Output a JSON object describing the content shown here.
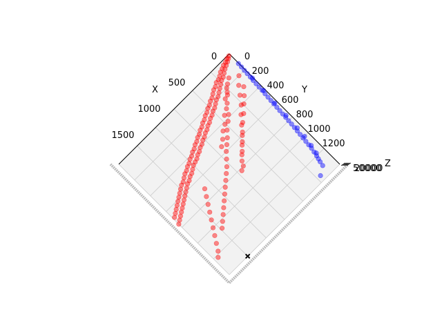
{
  "chart_data": {
    "type": "scatter",
    "projection": "3d",
    "xlabel": "X",
    "ylabel": "Y",
    "zlabel": "Z",
    "x_ticks": [
      "0",
      "500",
      "1000",
      "1500"
    ],
    "y_ticks": [
      "0",
      "200",
      "400",
      "600",
      "800",
      "1000",
      "1200"
    ],
    "z_ticks_overlapping": "5000 / 10000 / 15000 / 20000 / 25000 (overlapping)",
    "z_tick_text": "50000",
    "grid": true,
    "colors": {
      "series_red": "#ff0000",
      "series_blue": "#0000ff",
      "marker": "#000000",
      "pane": "#f2f2f2",
      "grid": "#cccccc"
    },
    "series": [
      {
        "color": "red",
        "alpha": 0.45,
        "points": [
          [
            20,
            10
          ],
          [
            45,
            25
          ],
          [
            60,
            15
          ],
          [
            80,
            40
          ],
          [
            100,
            30
          ],
          [
            120,
            55
          ],
          [
            140,
            35
          ],
          [
            160,
            70
          ],
          [
            180,
            50
          ],
          [
            200,
            90
          ],
          [
            220,
            60
          ],
          [
            240,
            110
          ],
          [
            260,
            80
          ],
          [
            280,
            120
          ],
          [
            300,
            95
          ],
          [
            320,
            140
          ],
          [
            340,
            100
          ],
          [
            360,
            160
          ],
          [
            380,
            120
          ],
          [
            400,
            180
          ],
          [
            420,
            130
          ],
          [
            440,
            200
          ],
          [
            460,
            150
          ],
          [
            480,
            210
          ],
          [
            500,
            170
          ],
          [
            520,
            230
          ],
          [
            540,
            180
          ],
          [
            560,
            250
          ],
          [
            580,
            200
          ],
          [
            600,
            260
          ],
          [
            620,
            210
          ],
          [
            640,
            280
          ],
          [
            660,
            230
          ],
          [
            680,
            290
          ],
          [
            700,
            240
          ],
          [
            720,
            310
          ],
          [
            740,
            260
          ],
          [
            760,
            320
          ],
          [
            780,
            270
          ],
          [
            800,
            340
          ],
          [
            820,
            290
          ],
          [
            840,
            350
          ],
          [
            860,
            300
          ],
          [
            880,
            370
          ],
          [
            900,
            320
          ],
          [
            920,
            380
          ],
          [
            940,
            330
          ],
          [
            960,
            400
          ],
          [
            980,
            350
          ],
          [
            1000,
            410
          ],
          [
            1020,
            360
          ],
          [
            1040,
            430
          ],
          [
            1060,
            380
          ],
          [
            1080,
            440
          ],
          [
            1100,
            390
          ],
          [
            1120,
            460
          ],
          [
            1140,
            410
          ],
          [
            1160,
            470
          ],
          [
            1180,
            420
          ],
          [
            1200,
            480
          ],
          [
            1220,
            440
          ],
          [
            1240,
            500
          ],
          [
            1260,
            450
          ],
          [
            1280,
            520
          ],
          [
            1300,
            470
          ],
          [
            1320,
            530
          ],
          [
            1340,
            480
          ],
          [
            1360,
            550
          ],
          [
            1380,
            500
          ],
          [
            1400,
            560
          ],
          [
            1420,
            520
          ],
          [
            1440,
            580
          ],
          [
            1460,
            530
          ],
          [
            1480,
            600
          ],
          [
            1500,
            550
          ],
          [
            1520,
            620
          ],
          [
            1540,
            570
          ],
          [
            1560,
            640
          ],
          [
            1580,
            590
          ],
          [
            1600,
            660
          ],
          [
            1620,
            610
          ],
          [
            1640,
            680
          ],
          [
            1660,
            630
          ],
          [
            1680,
            700
          ],
          [
            1700,
            650
          ],
          [
            1720,
            720
          ],
          [
            1740,
            670
          ],
          [
            1760,
            740
          ],
          [
            1780,
            690
          ],
          [
            1800,
            760
          ],
          [
            300,
            200
          ],
          [
            350,
            250
          ],
          [
            420,
            300
          ],
          [
            500,
            380
          ],
          [
            560,
            420
          ],
          [
            640,
            470
          ],
          [
            700,
            520
          ],
          [
            760,
            560
          ],
          [
            820,
            600
          ],
          [
            880,
            650
          ],
          [
            940,
            700
          ],
          [
            1000,
            740
          ],
          [
            1060,
            780
          ],
          [
            1120,
            820
          ],
          [
            1180,
            860
          ],
          [
            1240,
            900
          ],
          [
            1300,
            940
          ],
          [
            1360,
            980
          ],
          [
            1420,
            1020
          ],
          [
            1480,
            1060
          ],
          [
            200,
            150
          ],
          [
            260,
            180
          ],
          [
            330,
            230
          ],
          [
            400,
            260
          ],
          [
            470,
            330
          ],
          [
            540,
            360
          ],
          [
            610,
            420
          ],
          [
            680,
            450
          ],
          [
            750,
            500
          ],
          [
            820,
            540
          ],
          [
            150,
            300
          ],
          [
            220,
            360
          ],
          [
            290,
            410
          ],
          [
            370,
            470
          ],
          [
            450,
            520
          ],
          [
            530,
            580
          ],
          [
            610,
            640
          ],
          [
            690,
            700
          ],
          [
            770,
            760
          ],
          [
            850,
            820
          ],
          [
            100,
            200
          ],
          [
            180,
            260
          ],
          [
            250,
            330
          ],
          [
            320,
            400
          ],
          [
            400,
            460
          ],
          [
            480,
            530
          ],
          [
            560,
            600
          ],
          [
            640,
            660
          ],
          [
            720,
            720
          ],
          [
            800,
            800
          ],
          [
            1300,
            700
          ],
          [
            1350,
            760
          ],
          [
            1400,
            820
          ],
          [
            1450,
            880
          ],
          [
            1500,
            940
          ],
          [
            1550,
            1000
          ],
          [
            1600,
            1060
          ],
          [
            1650,
            1120
          ],
          [
            1700,
            1180
          ],
          [
            1750,
            1220
          ]
        ]
      },
      {
        "color": "blue",
        "alpha": 0.45,
        "points": [
          [
            5,
            120
          ],
          [
            8,
            160
          ],
          [
            12,
            200
          ],
          [
            15,
            240
          ],
          [
            18,
            280
          ],
          [
            22,
            320
          ],
          [
            25,
            360
          ],
          [
            28,
            400
          ],
          [
            30,
            440
          ],
          [
            34,
            480
          ],
          [
            38,
            520
          ],
          [
            42,
            560
          ],
          [
            45,
            600
          ],
          [
            48,
            640
          ],
          [
            52,
            680
          ],
          [
            55,
            720
          ],
          [
            58,
            760
          ],
          [
            62,
            800
          ],
          [
            65,
            840
          ],
          [
            70,
            880
          ],
          [
            75,
            920
          ],
          [
            80,
            960
          ],
          [
            85,
            1000
          ],
          [
            90,
            1040
          ],
          [
            95,
            1080
          ],
          [
            100,
            1120
          ],
          [
            110,
            1160
          ],
          [
            120,
            1200
          ],
          [
            130,
            1230
          ],
          [
            140,
            1260
          ],
          [
            10,
            300
          ],
          [
            20,
            450
          ],
          [
            30,
            600
          ],
          [
            40,
            750
          ],
          [
            50,
            900
          ],
          [
            60,
            1000
          ],
          [
            80,
            1100
          ],
          [
            100,
            1180
          ],
          [
            150,
            1300
          ],
          [
            250,
            1350
          ]
        ]
      },
      {
        "color": "black",
        "marker": "X",
        "points": [
          [
            1500,
            1400
          ]
        ]
      }
    ]
  }
}
